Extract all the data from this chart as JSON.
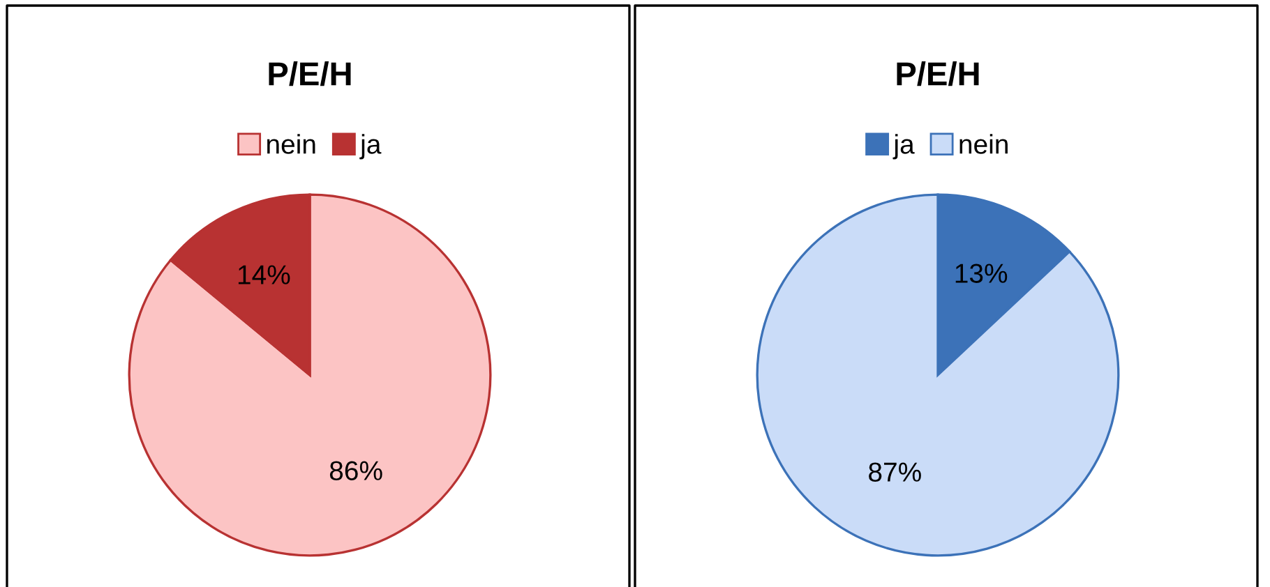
{
  "chart_data": [
    {
      "type": "pie",
      "title": "P/E/H",
      "categories": [
        "nein",
        "ja"
      ],
      "values": [
        86,
        14
      ],
      "colors": [
        "#fcc4c4",
        "#b83232"
      ],
      "value_labels": [
        "86%",
        "14%"
      ],
      "legend": "top"
    },
    {
      "type": "pie",
      "title": "P/E/H",
      "categories": [
        "ja",
        "nein"
      ],
      "values": [
        13,
        87
      ],
      "colors": [
        "#3c72b8",
        "#cadcf8"
      ],
      "value_labels": [
        "13%",
        "87%"
      ],
      "legend": "top"
    }
  ]
}
